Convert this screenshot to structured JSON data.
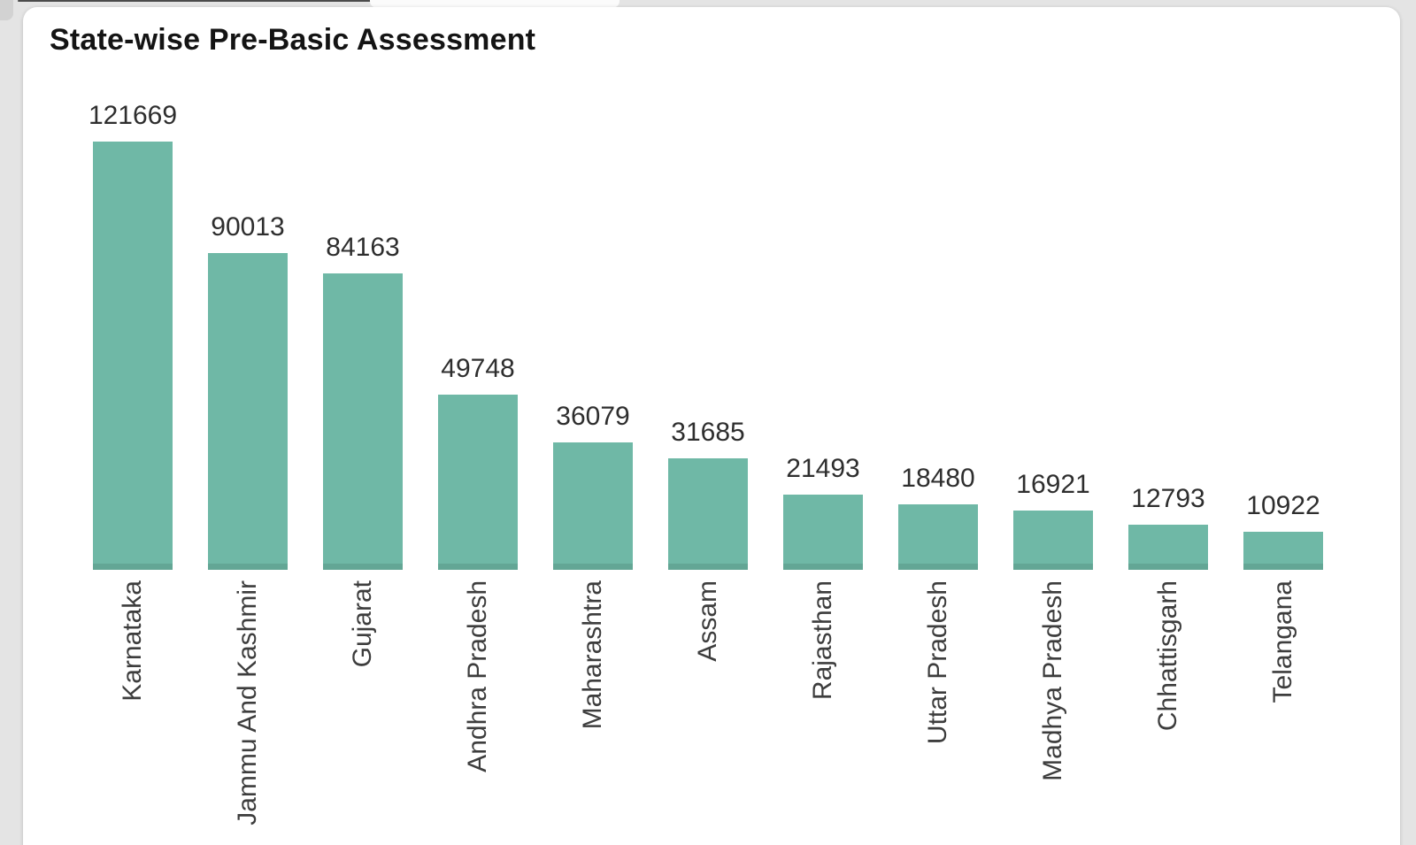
{
  "card": {
    "title": "State-wise Pre-Basic Assessment"
  },
  "chart_data": {
    "type": "bar",
    "title": "State-wise Pre-Basic Assessment",
    "categories": [
      "Karnataka",
      "Jammu And Kashmir",
      "Gujarat",
      "Andhra Pradesh",
      "Maharashtra",
      "Assam",
      "Rajasthan",
      "Uttar Pradesh",
      "Madhya Pradesh",
      "Chhattisgarh",
      "Telangana"
    ],
    "values": [
      121669,
      90013,
      84163,
      49748,
      36079,
      31685,
      21493,
      18480,
      16921,
      12793,
      10922
    ],
    "xlabel": "",
    "ylabel": "",
    "ylim": [
      0,
      130000
    ],
    "grid": false,
    "legend": false,
    "data_labels": true,
    "label_rotation": -90,
    "bar_color": "#6fb8a6"
  },
  "colors": {
    "background": "#e4e4e4",
    "card": "#ffffff",
    "bar": "#6fb8a6",
    "bar_bottom_edge": "#63a695",
    "title_text": "#141414",
    "value_text": "#2e2e2e",
    "axis_text": "#3d3d3d"
  }
}
